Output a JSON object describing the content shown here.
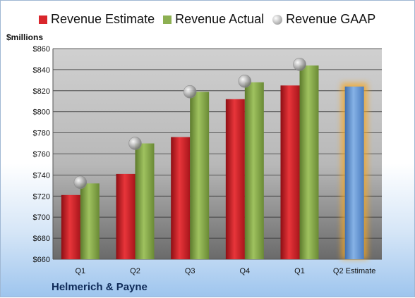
{
  "chart_data": {
    "type": "bar",
    "categories": [
      "Q1",
      "Q2",
      "Q3",
      "Q4",
      "Q1",
      "Q2 Estimate"
    ],
    "series": [
      {
        "name": "Revenue Estimate",
        "values": [
          721,
          741,
          776,
          812,
          825,
          null
        ]
      },
      {
        "name": "Revenue Actual",
        "values": [
          732,
          770,
          819,
          828,
          844,
          null
        ]
      },
      {
        "name": "Revenue GAAP",
        "values": [
          733,
          770,
          819,
          829,
          845,
          null
        ]
      }
    ],
    "next_quarter_estimate": {
      "category": "Q2 Estimate",
      "value": 824
    },
    "ylabel": "$millions",
    "ylim": [
      660,
      860
    ],
    "yticks": [
      "$660",
      "$680",
      "$700",
      "$720",
      "$740",
      "$760",
      "$780",
      "$800",
      "$820",
      "$840",
      "$860"
    ],
    "grid": true,
    "legend_position": "top",
    "company": "Helmerich & Payne",
    "colors": {
      "estimate": "#d9262c",
      "actual": "#8db052",
      "gaap": "#a9a9a9",
      "next_estimate": "#6f9fd8",
      "next_glow": "#f5a623"
    }
  }
}
